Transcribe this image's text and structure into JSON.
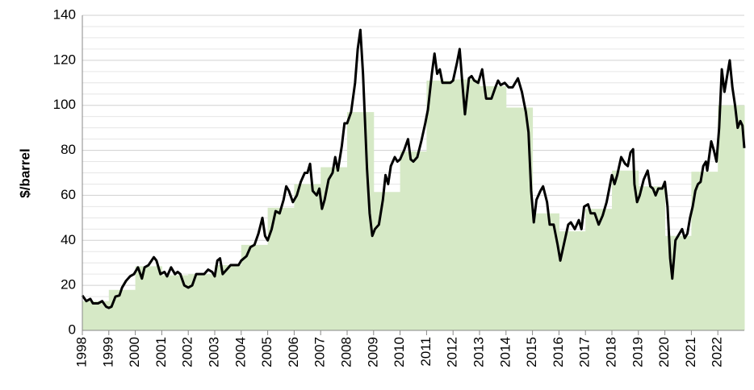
{
  "chart_data": {
    "type": "line",
    "y_label": "$/barrel",
    "xlim": [
      1998,
      2023
    ],
    "xticks": [
      1998,
      1999,
      2000,
      2001,
      2002,
      2003,
      2004,
      2005,
      2006,
      2007,
      2008,
      2009,
      2010,
      2011,
      2012,
      2013,
      2014,
      2015,
      2016,
      2017,
      2018,
      2019,
      2020,
      2021,
      2022
    ],
    "ylim": [
      0,
      140
    ],
    "yticks": [
      0,
      20,
      40,
      60,
      80,
      100,
      120,
      140
    ],
    "grid": true,
    "series": [
      {
        "type": "step-area",
        "color": "#d6e9c6",
        "x": [
          1998,
          1999,
          2000,
          2001,
          2002,
          2003,
          2004,
          2005,
          2006,
          2007,
          2008,
          2009,
          2010,
          2011,
          2012,
          2013,
          2014,
          2015,
          2016,
          2017,
          2018,
          2019,
          2020,
          2021,
          2022
        ],
        "values": [
          13,
          18,
          28.5,
          24.5,
          25,
          29,
          38,
          54.5,
          65,
          72.5,
          97,
          61.5,
          79.5,
          111,
          111.5,
          108.5,
          99,
          52,
          44,
          54,
          71,
          64,
          42,
          70.5,
          100
        ]
      },
      {
        "type": "line",
        "color": "#000000",
        "x": [
          1998.0,
          1998.15,
          1998.3,
          1998.4,
          1998.6,
          1998.75,
          1998.9,
          1999.0,
          1999.1,
          1999.25,
          1999.4,
          1999.5,
          1999.65,
          1999.8,
          1999.95,
          2000.1,
          2000.25,
          2000.35,
          2000.5,
          2000.7,
          2000.8,
          2000.95,
          2001.1,
          2001.2,
          2001.35,
          2001.5,
          2001.6,
          2001.7,
          2001.85,
          2002.0,
          2002.15,
          2002.3,
          2002.45,
          2002.6,
          2002.75,
          2002.9,
          2003.0,
          2003.1,
          2003.2,
          2003.3,
          2003.45,
          2003.6,
          2003.75,
          2003.9,
          2004.0,
          2004.2,
          2004.35,
          2004.5,
          2004.65,
          2004.8,
          2004.9,
          2005.0,
          2005.15,
          2005.3,
          2005.45,
          2005.6,
          2005.7,
          2005.8,
          2005.95,
          2006.1,
          2006.25,
          2006.4,
          2006.5,
          2006.6,
          2006.7,
          2006.85,
          2006.95,
          2007.05,
          2007.15,
          2007.3,
          2007.45,
          2007.55,
          2007.65,
          2007.8,
          2007.9,
          2008.0,
          2008.15,
          2008.3,
          2008.4,
          2008.5,
          2008.6,
          2008.75,
          2008.85,
          2008.95,
          2009.05,
          2009.2,
          2009.35,
          2009.45,
          2009.55,
          2009.65,
          2009.8,
          2009.9,
          2010.0,
          2010.15,
          2010.3,
          2010.4,
          2010.5,
          2010.65,
          2010.8,
          2010.95,
          2011.05,
          2011.2,
          2011.3,
          2011.4,
          2011.5,
          2011.6,
          2011.75,
          2011.9,
          2012.0,
          2012.15,
          2012.25,
          2012.35,
          2012.45,
          2012.6,
          2012.7,
          2012.8,
          2012.95,
          2013.1,
          2013.25,
          2013.45,
          2013.6,
          2013.7,
          2013.8,
          2013.95,
          2014.1,
          2014.25,
          2014.45,
          2014.6,
          2014.75,
          2014.85,
          2014.95,
          2015.05,
          2015.15,
          2015.3,
          2015.4,
          2015.55,
          2015.65,
          2015.8,
          2015.95,
          2016.05,
          2016.2,
          2016.35,
          2016.45,
          2016.6,
          2016.75,
          2016.85,
          2016.95,
          2017.1,
          2017.2,
          2017.35,
          2017.5,
          2017.65,
          2017.8,
          2017.9,
          2018.0,
          2018.1,
          2018.2,
          2018.35,
          2018.5,
          2018.6,
          2018.7,
          2018.8,
          2018.85,
          2018.95,
          2019.05,
          2019.2,
          2019.35,
          2019.45,
          2019.55,
          2019.65,
          2019.75,
          2019.9,
          2020.0,
          2020.1,
          2020.2,
          2020.28,
          2020.4,
          2020.55,
          2020.65,
          2020.75,
          2020.85,
          2020.95,
          2021.05,
          2021.15,
          2021.25,
          2021.35,
          2021.45,
          2021.55,
          2021.6,
          2021.75,
          2021.85,
          2021.95,
          2022.05,
          2022.15,
          2022.25,
          2022.35,
          2022.45,
          2022.55,
          2022.65,
          2022.75,
          2022.85,
          2022.93,
          2023.0
        ],
        "values": [
          15.5,
          13,
          14,
          12,
          12,
          13,
          10.5,
          10,
          10.5,
          15,
          15.5,
          19,
          22,
          24,
          25,
          28,
          23,
          28,
          29,
          32.5,
          31,
          25,
          26,
          24,
          28,
          25,
          26,
          25,
          20,
          19,
          20,
          25,
          25,
          25,
          27,
          26,
          24,
          31,
          32,
          25,
          27,
          29,
          29,
          29,
          31,
          33,
          37,
          38,
          43,
          50,
          42,
          40,
          45,
          53,
          52,
          58,
          64,
          62,
          57,
          60,
          66,
          70,
          70,
          74,
          62,
          60,
          63,
          54,
          58,
          67,
          70,
          77,
          71,
          82,
          92,
          92,
          97,
          110,
          125,
          133.5,
          114,
          72,
          52,
          42,
          45,
          47,
          58,
          69,
          65,
          73,
          77,
          75,
          76,
          80,
          85,
          76,
          75,
          77,
          84,
          92,
          98,
          114,
          123,
          114,
          116,
          110,
          110,
          110,
          111,
          119,
          125,
          110,
          96,
          112,
          113,
          111,
          110,
          116,
          103,
          103,
          108,
          111,
          109,
          110,
          108,
          108,
          112,
          106,
          97,
          88,
          62,
          48,
          58,
          62,
          64,
          57,
          47,
          47,
          38,
          31,
          39,
          47,
          48,
          45,
          49,
          45,
          55,
          56,
          52,
          52,
          47,
          51,
          57,
          63,
          69,
          65,
          69,
          77,
          74,
          73,
          79,
          80.5,
          65,
          57,
          60,
          67,
          71,
          64,
          63,
          60,
          63,
          63,
          66,
          55,
          32,
          23,
          40,
          43,
          45,
          41,
          43,
          50,
          55,
          62,
          65,
          66,
          73,
          75,
          71,
          84,
          80,
          75,
          90,
          116,
          106,
          113,
          120,
          108,
          100,
          90,
          93,
          91,
          81
        ]
      }
    ]
  }
}
